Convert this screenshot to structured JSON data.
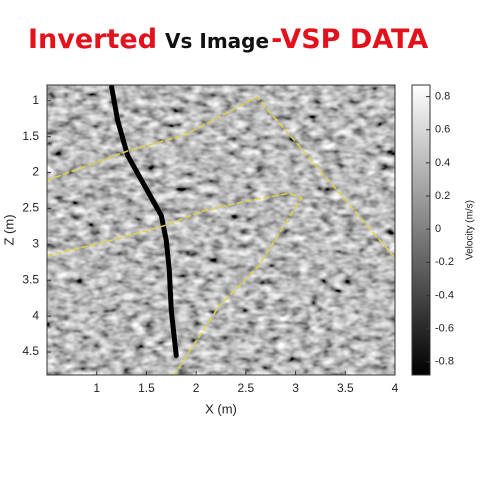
{
  "chart_data": {
    "type": "heatmap",
    "title": [
      {
        "text": "Inverted",
        "color": "#e3111b"
      },
      {
        "text": "Vs Image",
        "color": "#111111"
      },
      {
        "text": "-VSP DATA",
        "color": "#e3111b"
      }
    ],
    "xlabel": "X (m)",
    "ylabel": "Z (m)",
    "xlim": [
      0.5,
      4
    ],
    "xticks": [
      1,
      1.5,
      2,
      2.5,
      3,
      3.5,
      4
    ],
    "ylim": [
      0.78,
      4.82
    ],
    "yticks": [
      1,
      1.5,
      2,
      2.5,
      3,
      3.5,
      4,
      4.5
    ],
    "y_inverted": true,
    "colorbar": {
      "label": "Velocity (m/s)",
      "lim": [
        -0.88,
        0.87
      ],
      "ticks": [
        0.8,
        0.6,
        0.4,
        0.2,
        0,
        -0.2,
        -0.4,
        -0.6,
        -0.8
      ]
    },
    "series": [
      {
        "color": "#000000",
        "style": "solid",
        "width": 5,
        "x": [
          1.15,
          1.21,
          1.31,
          1.48,
          1.65,
          1.7,
          1.73,
          1.75,
          1.8
        ],
        "values": [
          0.81,
          1.27,
          1.76,
          2.18,
          2.6,
          2.95,
          3.36,
          3.92,
          4.55
        ]
      },
      {
        "color": "#e3d43a",
        "style": "dashed",
        "width": 1.5,
        "x": [
          0.5,
          1.33,
          1.88,
          2.61,
          3.03,
          3.98
        ],
        "values": [
          2.11,
          1.69,
          1.48,
          0.95,
          1.62,
          3.16
        ]
      },
      {
        "color": "#e3d43a",
        "style": "dashed",
        "width": 1.5,
        "x": [
          0.5,
          1.13,
          1.68,
          2.08,
          2.53,
          2.93,
          3.06
        ],
        "values": [
          3.16,
          2.95,
          2.74,
          2.53,
          2.39,
          2.29,
          2.35
        ]
      },
      {
        "color": "#e3d43a",
        "style": "dashed",
        "width": 1.5,
        "x": [
          1.78,
          2.23,
          2.63,
          3.06
        ],
        "values": [
          4.82,
          3.86,
          3.3,
          2.35
        ]
      }
    ]
  }
}
